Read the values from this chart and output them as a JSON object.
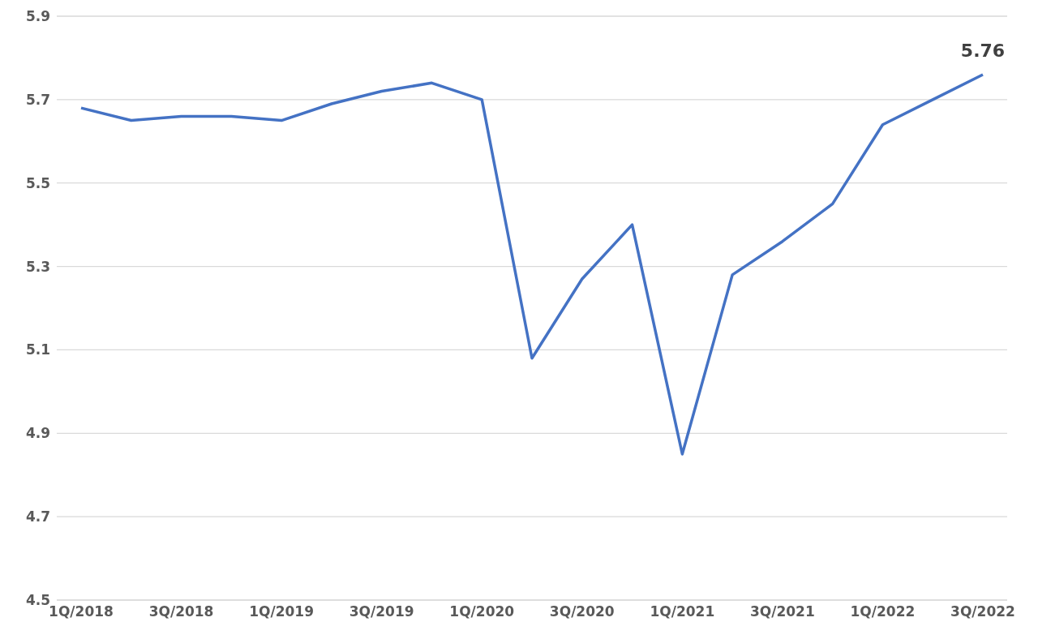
{
  "chart_data": {
    "type": "line",
    "categories": [
      "1Q/2018",
      null,
      "3Q/2018",
      null,
      "1Q/2019",
      null,
      "3Q/2019",
      null,
      "1Q/2020",
      null,
      "3Q/2020",
      null,
      "1Q/2021",
      null,
      "3Q/2021",
      null,
      "1Q/2022",
      null,
      "3Q/2022"
    ],
    "series": [
      {
        "color": "#4472c4",
        "values": [
          5.68,
          5.65,
          5.66,
          5.66,
          5.65,
          5.69,
          5.72,
          5.74,
          5.7,
          5.08,
          5.27,
          5.4,
          4.85,
          5.28,
          5.36,
          5.45,
          5.64,
          5.7,
          5.76
        ],
        "value_labels": [
          null,
          null,
          null,
          null,
          null,
          null,
          null,
          null,
          null,
          null,
          null,
          null,
          null,
          null,
          null,
          null,
          null,
          null,
          "5.76"
        ]
      }
    ],
    "ylim": [
      4.5,
      5.9
    ],
    "yticks": [
      4.5,
      4.7,
      4.9,
      5.1,
      5.3,
      5.5,
      5.7,
      5.9
    ],
    "grid": "y",
    "marker": "none",
    "line_style": "solid",
    "legend": false
  }
}
